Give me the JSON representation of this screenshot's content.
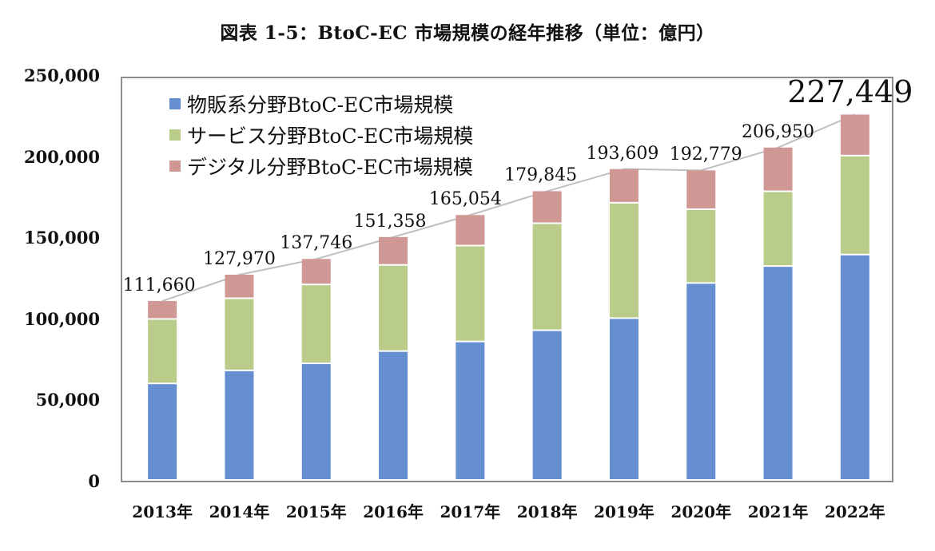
{
  "title": "図表 1-5：BtoC-EC 市場規模の経年推移（単位：億円）",
  "legend": [
    {
      "label": "物販系分野BtoC-EC市場規模",
      "color": "#658fd0"
    },
    {
      "label": "サービス分野BtoC-EC市場規模",
      "color": "#b9cc8a"
    },
    {
      "label": "デジタル分野BtoC-EC市場規模",
      "color": "#d09894"
    }
  ],
  "y_ticks": [
    "250,000",
    "200,000",
    "150,000",
    "100,000",
    "50,000",
    "0"
  ],
  "x_ticks": [
    "2013年",
    "2014年",
    "2015年",
    "2016年",
    "2017年",
    "2018年",
    "2019年",
    "2020年",
    "2021年",
    "2022年"
  ],
  "total_labels": [
    "111,660",
    "127,970",
    "137,746",
    "151,358",
    "165,054",
    "179,845",
    "193,609",
    "192,779",
    "206,950",
    "227,449"
  ],
  "chart_data": {
    "type": "bar",
    "stacked": true,
    "title": "図表 1-5：BtoC-EC 市場規模の経年推移（単位：億円）",
    "xlabel": "",
    "ylabel": "億円",
    "ylim": [
      0,
      250000
    ],
    "y_ticks": [
      0,
      50000,
      100000,
      150000,
      200000,
      250000
    ],
    "grid": false,
    "legend_position": "top-left inside",
    "categories": [
      "2013年",
      "2014年",
      "2015年",
      "2016年",
      "2017年",
      "2018年",
      "2019年",
      "2020年",
      "2021年",
      "2022年"
    ],
    "series": [
      {
        "name": "物販系分野BtoC-EC市場規模",
        "color": "#658fd0",
        "values": [
          59931,
          68043,
          72398,
          80043,
          86008,
          92992,
          100515,
          122333,
          132865,
          139997
        ]
      },
      {
        "name": "サービス分野BtoC-EC市場規模",
        "color": "#b9cc8a",
        "values": [
          40078,
          44816,
          49014,
          53532,
          59568,
          66471,
          71672,
          45832,
          46424,
          61477
        ]
      },
      {
        "name": "デジタル分野BtoC-EC市場規模",
        "color": "#d09894",
        "values": [
          11651,
          15111,
          16334,
          17783,
          19478,
          20382,
          21422,
          24614,
          27661,
          25975
        ]
      }
    ],
    "totals": [
      111660,
      127970,
      137746,
      151358,
      165054,
      179845,
      193609,
      192779,
      206950,
      227449
    ],
    "annotations": [
      "Total labels above each bar connected by a grey line; 2022 total 227,449 shown in larger font"
    ]
  }
}
